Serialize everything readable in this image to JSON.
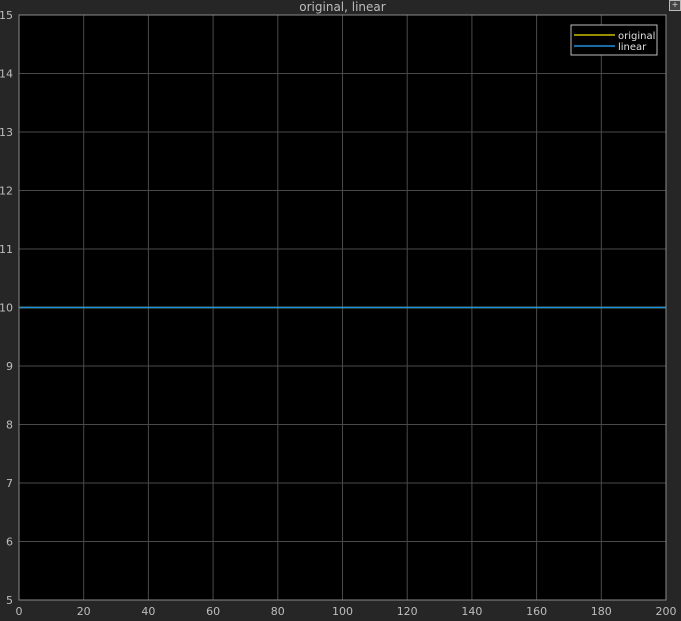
{
  "chart_data": {
    "type": "line",
    "title": "original, linear",
    "xlabel": "",
    "ylabel": "",
    "xlim": [
      0,
      200
    ],
    "ylim": [
      5,
      15
    ],
    "xticks": [
      0,
      20,
      40,
      60,
      80,
      100,
      120,
      140,
      160,
      180,
      200
    ],
    "yticks": [
      5,
      6,
      7,
      8,
      9,
      10,
      11,
      12,
      13,
      14,
      15
    ],
    "grid": true,
    "legend_position": "top-right",
    "series": [
      {
        "name": "original",
        "color": "#c8c000",
        "x": [
          0,
          200
        ],
        "y": [
          10,
          10
        ]
      },
      {
        "name": "linear",
        "color": "#1f8fe0",
        "x": [
          0,
          200
        ],
        "y": [
          10,
          10
        ]
      }
    ],
    "colors": {
      "background": "#262626",
      "axes": "#000000",
      "grid": "#4a4a4a",
      "text": "#bdbdbd"
    }
  }
}
